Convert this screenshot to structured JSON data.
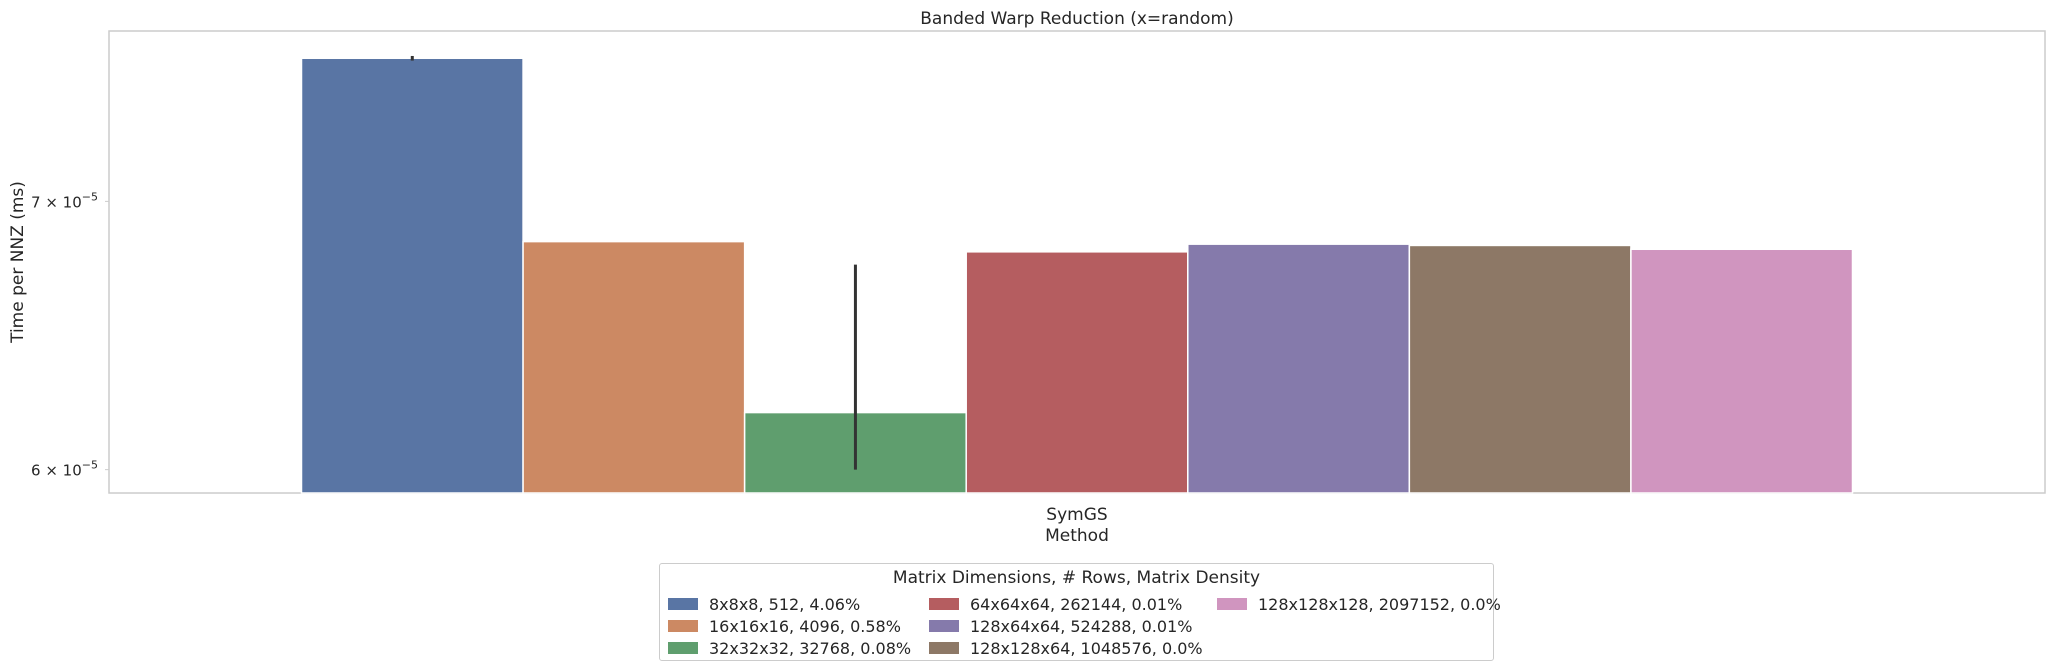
{
  "chart_data": {
    "type": "bar",
    "title": "Banded Warp Reduction (x=random)",
    "xlabel": "Method",
    "ylabel": "Time per NNZ (ms)",
    "yscale": "log",
    "ylim": [
      5.92e-05,
      7.72e-05
    ],
    "categories": [
      "SymGS"
    ],
    "yticks": [
      {
        "value": 6e-05,
        "mantissa": "6",
        "base": "10",
        "exponent": "−5"
      },
      {
        "value": 7e-05,
        "mantissa": "7",
        "base": "10",
        "exponent": "−5"
      }
    ],
    "grid": false,
    "legend_position": "bottom-center",
    "legend_title": "Matrix Dimensions, # Rows, Matrix Density",
    "series": [
      {
        "name": "8x8x8, 512, 4.06%",
        "values": [
          7.6e-05
        ],
        "color": "#5975a4",
        "error": [
          7.59e-05,
          7.61e-05
        ]
      },
      {
        "name": "16x16x16, 4096, 0.58%",
        "values": [
          6.84e-05
        ],
        "color": "#cc8963"
      },
      {
        "name": "32x32x32, 32768, 0.08%",
        "values": [
          6.2e-05
        ],
        "color": "#5f9e6e",
        "error": [
          6e-05,
          6.75e-05
        ]
      },
      {
        "name": "64x64x64, 262144, 0.01%",
        "values": [
          6.8e-05
        ],
        "color": "#b55d60"
      },
      {
        "name": "128x64x64, 524288, 0.01%",
        "values": [
          6.83e-05
        ],
        "color": "#857aab"
      },
      {
        "name": "128x128x64, 1048576, 0.0%",
        "values": [
          6.825e-05
        ],
        "color": "#8d7866"
      },
      {
        "name": "128x128x128, 2097152, 0.0%",
        "values": [
          6.81e-05
        ],
        "color": "#d095bf"
      }
    ]
  }
}
